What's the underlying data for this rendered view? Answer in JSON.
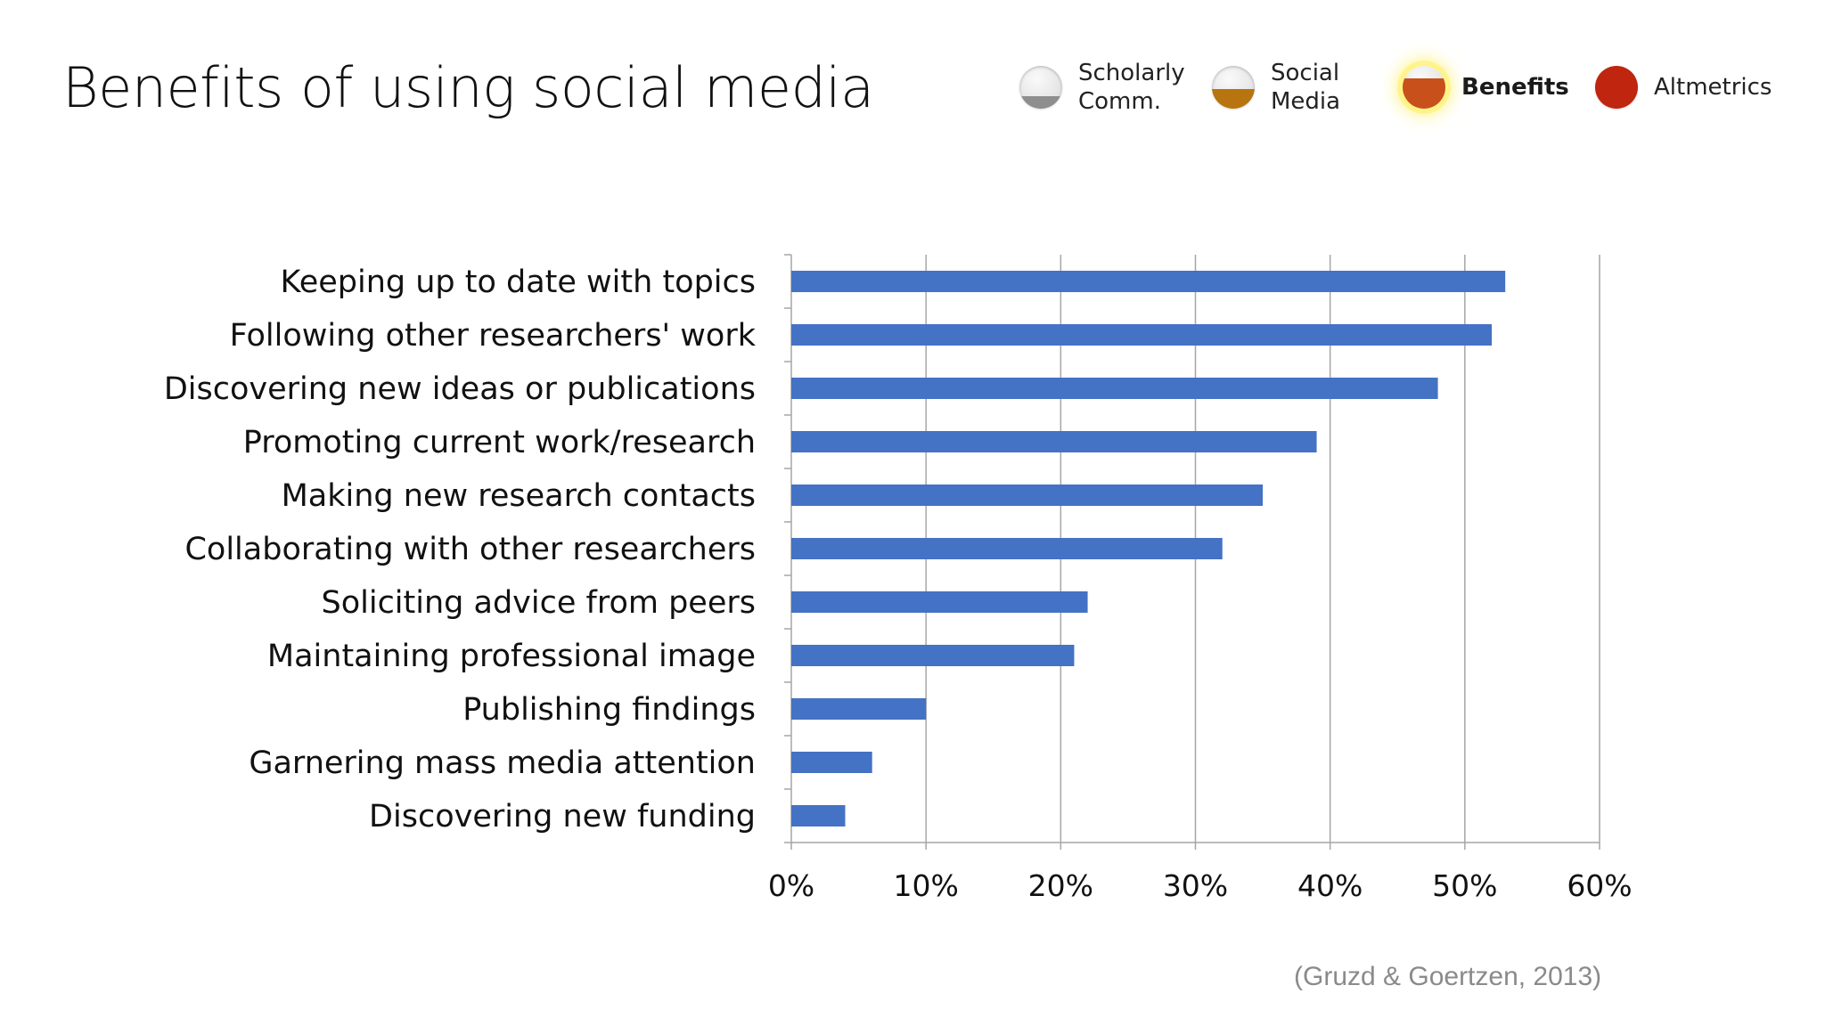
{
  "slide": {
    "title": "Benefits of using social media",
    "source": "(Gruzd & Goertzen, 2013)"
  },
  "nav": [
    {
      "label": "Scholarly\nComm.",
      "icon": "gray-ball-icon",
      "fill_color": "#8e8e8e",
      "fill_level": 0.3,
      "active": false
    },
    {
      "label": "Social\nMedia",
      "icon": "amber-ball-icon",
      "fill_color": "#b8740e",
      "fill_level": 0.45,
      "active": false
    },
    {
      "label": "Benefits",
      "icon": "orange-ball-icon",
      "fill_color": "#c8501a",
      "fill_level": 0.7,
      "active": true
    },
    {
      "label": "Altmetrics",
      "icon": "red-ball-icon",
      "fill_color": "#c0250f",
      "fill_level": 1.0,
      "active": false
    }
  ],
  "chart_data": {
    "type": "bar",
    "orientation": "horizontal",
    "categories": [
      "Keeping up to date with topics",
      "Following other researchers' work",
      "Discovering new ideas or publications",
      "Promoting current work/research",
      "Making new research contacts",
      "Collaborating with other researchers",
      "Soliciting advice from peers",
      "Maintaining professional image",
      "Publishing findings",
      "Garnering mass media attention",
      "Discovering new funding"
    ],
    "values": [
      53,
      52,
      48,
      39,
      35,
      32,
      22,
      21,
      10,
      6,
      4
    ],
    "xticks": [
      "0%",
      "10%",
      "20%",
      "30%",
      "40%",
      "50%",
      "60%"
    ],
    "xlim": [
      0,
      60
    ],
    "grid": true,
    "bar_color": "#4472c4",
    "grid_color": "#a6a6a6"
  }
}
